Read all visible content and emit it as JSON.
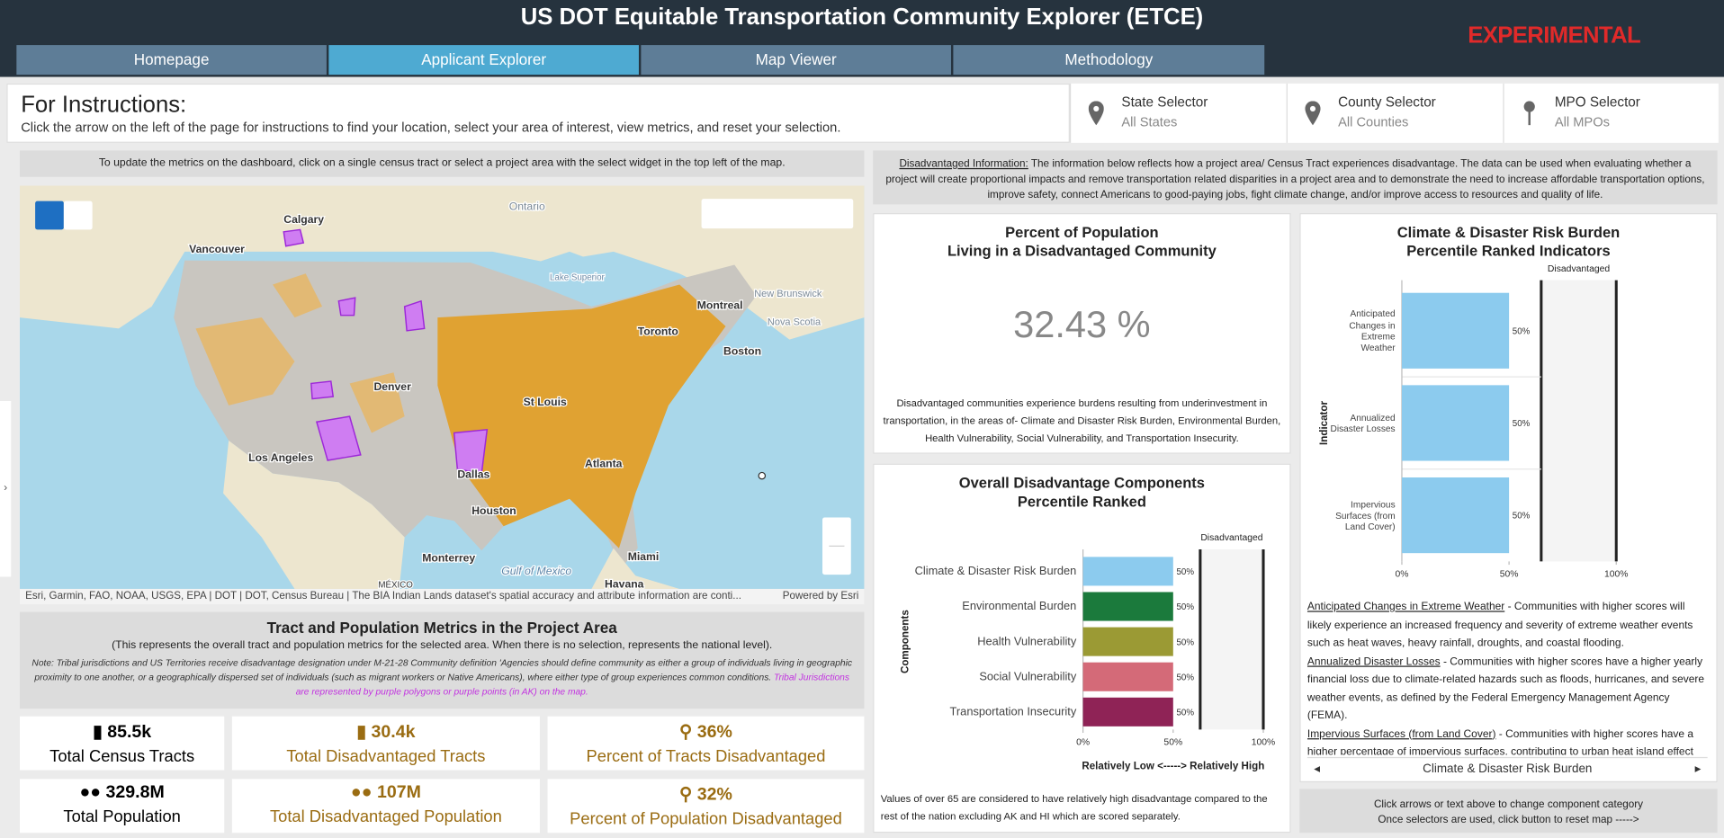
{
  "header": {
    "title": "US DOT Equitable Transportation Community Explorer (ETCE)",
    "badge": "EXPERIMENTAL"
  },
  "tabs": [
    "Homepage",
    "Applicant Explorer",
    "Map Viewer",
    "Methodology"
  ],
  "instructions": {
    "title": "For Instructions:",
    "text": "Click the arrow on the left of the page for instructions to find your location, select your area of interest, view metrics, and reset your selection."
  },
  "selectors": [
    {
      "label": "State Selector",
      "value": "All States"
    },
    {
      "label": "County Selector",
      "value": "All Counties"
    },
    {
      "label": "MPO Selector",
      "value": "All MPOs"
    }
  ],
  "map": {
    "note": "To update the metrics on the dashboard, click on a single census tract or select a project area with the select widget in the top left of the map.",
    "labels": [
      "Calgary",
      "Vancouver",
      "Ontario",
      "Lake Superior",
      "Montreal",
      "New Brunswick",
      "Nova Scotia",
      "Toronto",
      "Boston",
      "Denver",
      "St Louis",
      "Los Angeles",
      "Dallas",
      "Atlanta",
      "Houston",
      "Monterrey",
      "Gulf of Mexico",
      "Miami",
      "Havana",
      "MÉXICO"
    ],
    "attribution": "Esri, Garmin, FAO, NOAA, USGS, EPA | DOT | DOT, Census Bureau | The BIA Indian Lands dataset's spatial accuracy and attribute information are conti...",
    "powered": "Powered by Esri"
  },
  "metrics": {
    "title": "Tract and Population Metrics in the Project Area",
    "subtitle": "(This represents the overall tract and population metrics for the selected area. When there is no selection, represents the national level).",
    "note": "Note: Tribal jurisdictions and US Territories receive disadvantage designation under M-21-28 Community definition 'Agencies should define community as either a group of individuals living in geographic proximity to one another, or a geographically dispersed set of individuals (such as migrant workers or Native Americans), where either type of group experiences common conditions.",
    "note_highlight": "Tribal Jurisdictions are represented by purple polygons or purple points (in AK) on the map."
  },
  "kpis": [
    {
      "value": "85.5k",
      "label": "Total Census Tracts"
    },
    {
      "value": "30.4k",
      "label": "Total Disadvantaged Tracts"
    },
    {
      "value": "36%",
      "label": "Percent of Tracts Disadvantaged"
    },
    {
      "value": "329.8M",
      "label": "Total Population"
    },
    {
      "value": "107M",
      "label": "Total Disadvantaged Population"
    },
    {
      "value": "32%",
      "label": "Percent of Population Disadvantaged"
    }
  ],
  "info": {
    "term": "Disadvantaged Information:",
    "text": "The information below reflects how a project area/ Census Tract experiences disadvantage.  The data can be used when evaluating whether a project will create proportional impacts and remove transportation related disparities in a project area and to demonstrate the need to increase affordable transportation options, improve safety, connect Americans to good-paying jobs, fight climate change, and/or improve access to resources and quality of life."
  },
  "percent": {
    "title": "Percent of Population\nLiving in a Disadvantaged Community",
    "value": "32.43 %",
    "text": "Disadvantaged communities experience burdens resulting from underinvestment in transportation, in the areas of- Climate and Disaster Risk Burden, Environmental Burden, Health Vulnerability, Social Vulnerability, and Transportation Insecurity."
  },
  "chart_data": [
    {
      "type": "bar",
      "orientation": "horizontal",
      "title": "Overall Disadvantage Components\nPercentile Ranked",
      "categories": [
        "Climate & Disaster Risk Burden",
        "Environmental Burden",
        "Health Vulnerability",
        "Social Vulnerability",
        "Transportation Insecurity"
      ],
      "values": [
        50,
        50,
        50,
        50,
        50
      ],
      "value_labels": [
        "50%",
        "50%",
        "50%",
        "50%",
        "50%"
      ],
      "colors": [
        "#8ccbee",
        "#1b7a3c",
        "#9b9a34",
        "#d46a78",
        "#8f2356"
      ],
      "xlim": [
        0,
        100
      ],
      "xticks": [
        {
          "value": 0,
          "label": "0%"
        },
        {
          "value": 50,
          "label": "50%"
        },
        {
          "value": 100,
          "label": "100%"
        }
      ],
      "threshold": 65,
      "threshold_label": "Disadvantaged",
      "xlabel": "Relatively Low <-----> Relatively High",
      "ylabel": "Components",
      "note": "Values of over 65 are considered to have relatively high disadvantage compared to the rest of the nation excluding AK and HI which are scored separately."
    },
    {
      "type": "bar",
      "orientation": "horizontal",
      "title": "Climate & Disaster Risk Burden\nPercentile Ranked Indicators",
      "categories": [
        "Anticipated Changes in Extreme Weather",
        "Annualized Disaster Losses",
        "Impervious Surfaces (from Land Cover)"
      ],
      "values": [
        50,
        50,
        50
      ],
      "value_labels": [
        "50%",
        "50%",
        "50%"
      ],
      "color": "#8ccbee",
      "xlim": [
        0,
        100
      ],
      "xticks": [
        {
          "value": 0,
          "label": "0%"
        },
        {
          "value": 50,
          "label": "50%"
        },
        {
          "value": 100,
          "label": "100%"
        }
      ],
      "threshold": 65,
      "threshold_label": "Disadvantaged",
      "ylabel": "Indicator"
    }
  ],
  "indicators": [
    {
      "term": "Anticipated Changes in Extreme Weather",
      "text": " - Communities with higher scores will likely experience an increased frequency and severity of extreme weather events such as heat waves, heavy rainfall, droughts, and coastal flooding."
    },
    {
      "term": "Annualized Disaster Losses",
      "text": " - Communities with higher scores have a higher yearly financial loss due to climate-related hazards such as floods, hurricanes, and severe weather events, as defined by the Federal Emergency Management Agency (FEMA)."
    },
    {
      "term": "Impervious Surfaces (from Land Cover)",
      "text": " - Communities with higher scores have a higher percentage of impervious surfaces, contributing to urban heat island effect and exacerbating the impacts of extreme weather events."
    }
  ],
  "nav": {
    "label": "Climate & Disaster Risk Burden"
  },
  "help": [
    "Click arrows or text above to change component category",
    "Once selectors are used, click button to reset map ----->"
  ]
}
